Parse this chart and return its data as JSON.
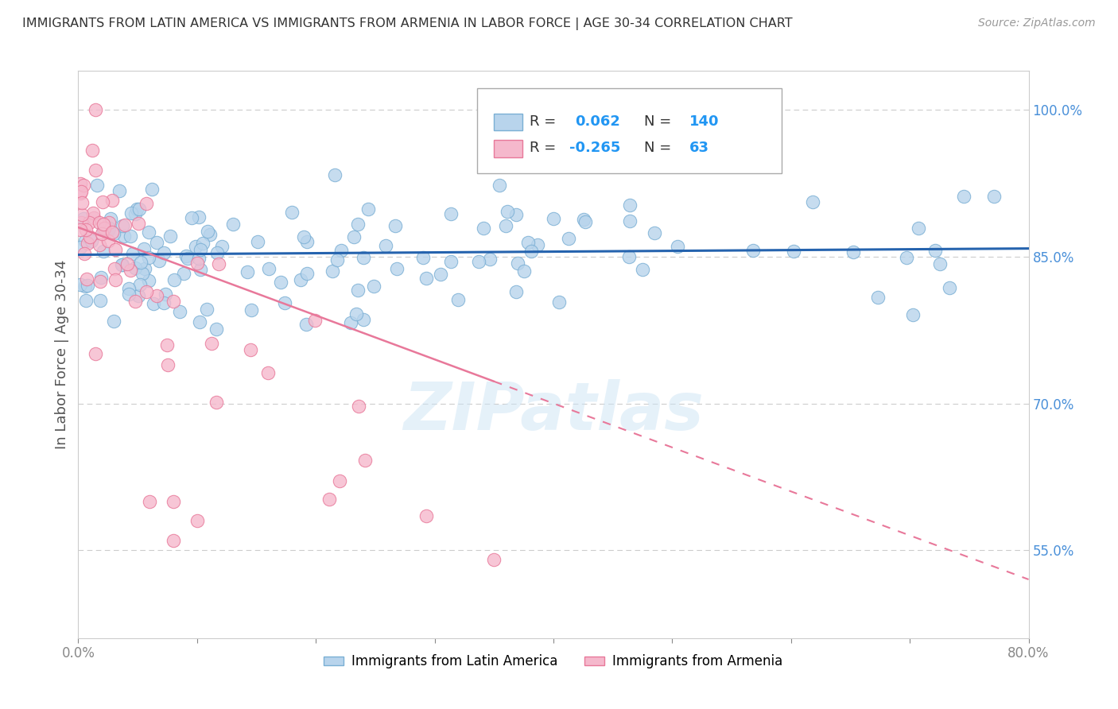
{
  "title": "IMMIGRANTS FROM LATIN AMERICA VS IMMIGRANTS FROM ARMENIA IN LABOR FORCE | AGE 30-34 CORRELATION CHART",
  "source": "Source: ZipAtlas.com",
  "ylabel": "In Labor Force | Age 30-34",
  "xlim": [
    0.0,
    0.8
  ],
  "ylim": [
    0.46,
    1.04
  ],
  "right_yticks": [
    0.55,
    0.7,
    0.85,
    1.0
  ],
  "right_yticklabels": [
    "55.0%",
    "70.0%",
    "85.0%",
    "100.0%"
  ],
  "xticks": [
    0.0,
    0.1,
    0.2,
    0.3,
    0.4,
    0.5,
    0.6,
    0.7,
    0.8
  ],
  "xticklabels": [
    "0.0%",
    "",
    "",
    "",
    "",
    "",
    "",
    "",
    "80.0%"
  ],
  "blue_color": "#b8d4ec",
  "blue_edge": "#7aafd4",
  "pink_color": "#f5b8cc",
  "pink_edge": "#e87899",
  "blue_line_color": "#2563ae",
  "pink_line_color": "#e8789a",
  "watermark": "ZIPatlas",
  "legend_label_blue": "Immigrants from Latin America",
  "legend_label_pink": "Immigrants from Armenia"
}
